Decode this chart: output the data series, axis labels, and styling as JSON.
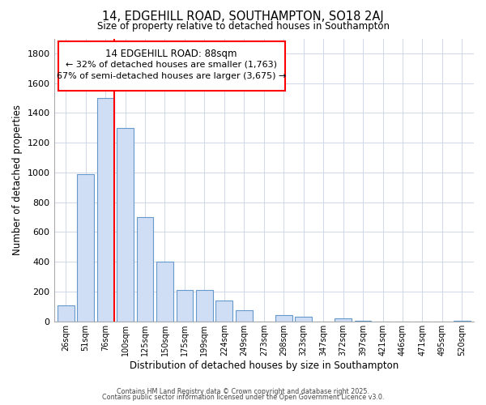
{
  "title": "14, EDGEHILL ROAD, SOUTHAMPTON, SO18 2AJ",
  "subtitle": "Size of property relative to detached houses in Southampton",
  "xlabel": "Distribution of detached houses by size in Southampton",
  "ylabel": "Number of detached properties",
  "bar_color": "#cfddf5",
  "bar_edge_color": "#6699cc",
  "categories": [
    "26sqm",
    "51sqm",
    "76sqm",
    "100sqm",
    "125sqm",
    "150sqm",
    "175sqm",
    "199sqm",
    "224sqm",
    "249sqm",
    "273sqm",
    "298sqm",
    "323sqm",
    "347sqm",
    "372sqm",
    "397sqm",
    "421sqm",
    "446sqm",
    "471sqm",
    "495sqm",
    "520sqm"
  ],
  "values": [
    110,
    990,
    1500,
    1300,
    700,
    400,
    210,
    210,
    140,
    75,
    0,
    45,
    30,
    0,
    20,
    5,
    0,
    0,
    0,
    0,
    5
  ],
  "ylim": [
    0,
    1900
  ],
  "yticks": [
    0,
    200,
    400,
    600,
    800,
    1000,
    1200,
    1400,
    1600,
    1800
  ],
  "property_line_label": "14 EDGEHILL ROAD: 88sqm",
  "annotation_line1": "← 32% of detached houses are smaller (1,763)",
  "annotation_line2": "67% of semi-detached houses are larger (3,675) →",
  "footer1": "Contains HM Land Registry data © Crown copyright and database right 2025.",
  "footer2": "Contains public sector information licensed under the Open Government Licence v3.0.",
  "background_color": "#ffffff",
  "grid_color": "#d0d8e8"
}
